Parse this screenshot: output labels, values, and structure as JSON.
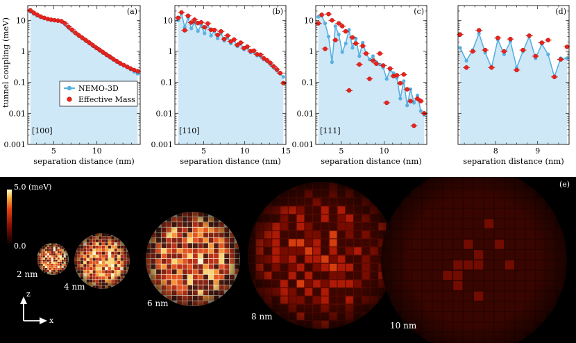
{
  "figure": {
    "ylabel": "tunnel coupling (meV)",
    "xlabel": "separation distance (nm)",
    "legend": {
      "nemo": "NEMO-3D",
      "em": "Effective Mass"
    },
    "colors": {
      "nemo_line": "#58b0e0",
      "nemo_fill": "#cfe8f7",
      "em": "#e8231b",
      "em_edge": "#b51410"
    }
  },
  "chart_data": [
    {
      "type": "line",
      "panel_label": "(a)",
      "direction": "[100]",
      "xlim": [
        2,
        15
      ],
      "ylim": [
        0.001,
        30
      ],
      "xticks": [
        5,
        10
      ],
      "xtick_labels": [
        "5",
        "10"
      ],
      "yticks": [
        0.001,
        0.01,
        0.1,
        1,
        10
      ],
      "ytick_labels": [
        "0.001",
        "0.01",
        "0.1",
        "1",
        "10"
      ],
      "nemo": {
        "x": [
          2.3,
          2.7,
          3.1,
          3.5,
          3.9,
          4.3,
          4.7,
          5.1,
          5.5,
          5.9,
          6.3,
          6.7,
          7.1,
          7.5,
          7.9,
          8.3,
          8.7,
          9.1,
          9.5,
          9.9,
          10.3,
          10.7,
          11.1,
          11.5,
          11.9,
          12.3,
          12.7,
          13.1,
          13.5,
          13.9,
          14.3,
          14.7
        ],
        "y": [
          19,
          16,
          14,
          12.5,
          11.5,
          10.8,
          10.3,
          10,
          9.6,
          9,
          7.5,
          5.8,
          4.7,
          3.8,
          3.1,
          2.6,
          2.15,
          1.8,
          1.5,
          1.25,
          1.05,
          0.88,
          0.74,
          0.63,
          0.53,
          0.45,
          0.39,
          0.34,
          0.3,
          0.26,
          0.22,
          0.19
        ]
      },
      "em": {
        "x": [
          2.3,
          2.7,
          3.1,
          3.5,
          3.9,
          4.3,
          4.7,
          5.1,
          5.5,
          5.9,
          6.3,
          6.7,
          7.1,
          7.5,
          7.9,
          8.3,
          8.7,
          9.1,
          9.5,
          9.9,
          10.3,
          10.7,
          11.1,
          11.5,
          11.9,
          12.3,
          12.7,
          13.1,
          13.5,
          13.9,
          14.3,
          14.7
        ],
        "y": [
          21,
          17.5,
          15,
          13.2,
          12,
          11.1,
          10.5,
          10.1,
          9.8,
          9.4,
          8,
          6.2,
          5,
          4,
          3.3,
          2.75,
          2.3,
          1.92,
          1.6,
          1.33,
          1.12,
          0.94,
          0.79,
          0.67,
          0.56,
          0.48,
          0.41,
          0.36,
          0.32,
          0.28,
          0.25,
          0.23
        ]
      }
    },
    {
      "type": "line",
      "panel_label": "(b)",
      "direction": "[110]",
      "xlim": [
        1.5,
        15
      ],
      "ylim": [
        0.001,
        30
      ],
      "xticks": [
        5,
        10,
        15
      ],
      "xtick_labels": [
        "5",
        "10",
        "15"
      ],
      "yticks": [
        0.001,
        0.01,
        0.1,
        1,
        10
      ],
      "ytick_labels": [
        "0.001",
        "0.01",
        "0.1",
        "1",
        "10"
      ],
      "nemo": {
        "x": [
          1.9,
          2.3,
          2.7,
          3.1,
          3.5,
          3.9,
          4.3,
          4.7,
          5.1,
          5.5,
          5.9,
          6.3,
          6.7,
          7.1,
          7.5,
          7.9,
          8.3,
          8.7,
          9.1,
          9.5,
          9.9,
          10.3,
          10.7,
          11.1,
          11.5,
          11.9,
          12.3,
          12.7,
          13.1,
          13.5,
          13.9,
          14.3,
          14.7
        ],
        "y": [
          10,
          17,
          6,
          12,
          5.5,
          8.5,
          4.5,
          7,
          3.8,
          8,
          3.2,
          4.6,
          2.6,
          4,
          2.2,
          2.9,
          1.8,
          2.3,
          1.45,
          1.8,
          1.15,
          1.3,
          0.92,
          0.95,
          0.73,
          0.7,
          0.55,
          0.48,
          0.38,
          0.3,
          0.24,
          0.19,
          0.15
        ]
      },
      "em": {
        "x": [
          1.9,
          2.3,
          2.7,
          3.1,
          3.5,
          3.9,
          4.3,
          4.7,
          5.1,
          5.5,
          5.9,
          6.3,
          6.7,
          7.1,
          7.5,
          7.9,
          8.3,
          8.7,
          9.1,
          9.5,
          9.9,
          10.3,
          10.7,
          11.1,
          11.5,
          11.9,
          12.3,
          12.7,
          13.1,
          13.5,
          13.9,
          14.3,
          14.7
        ],
        "y": [
          12,
          18,
          4.8,
          14,
          8.5,
          10.5,
          8.2,
          8.6,
          6,
          7.9,
          5,
          4.9,
          3.4,
          4.4,
          2.5,
          3.2,
          2.1,
          2.4,
          1.6,
          1.9,
          1.28,
          1.42,
          1.02,
          1.05,
          0.8,
          0.78,
          0.6,
          0.52,
          0.42,
          0.33,
          0.26,
          0.2,
          0.095
        ]
      }
    },
    {
      "type": "line",
      "panel_label": "(c)",
      "direction": "[111]",
      "xlim": [
        2,
        15
      ],
      "ylim": [
        0.001,
        30
      ],
      "xticks": [
        5,
        10
      ],
      "xtick_labels": [
        "5",
        "10"
      ],
      "yticks": [
        0.001,
        0.01,
        0.1,
        1,
        10
      ],
      "ytick_labels": [
        "0.001",
        "0.01",
        "0.1",
        "1",
        "10"
      ],
      "nemo": {
        "x": [
          2.3,
          2.7,
          3.1,
          3.5,
          3.9,
          4.3,
          4.7,
          5.1,
          5.5,
          5.9,
          6.3,
          6.7,
          7.1,
          7.5,
          7.9,
          8.3,
          8.7,
          9.1,
          9.5,
          9.9,
          10.3,
          10.7,
          11.1,
          11.5,
          11.9,
          12.3,
          12.7,
          13.1,
          13.5,
          13.9,
          14.3,
          14.7
        ],
        "y": [
          13,
          14,
          8,
          3,
          0.45,
          6.5,
          3.5,
          0.95,
          1.8,
          5,
          1.3,
          2.6,
          0.7,
          1.9,
          0.85,
          0.55,
          0.7,
          0.45,
          0.38,
          0.3,
          0.13,
          0.25,
          0.2,
          0.14,
          0.03,
          0.11,
          0.018,
          0.06,
          0.022,
          0.038,
          0.012,
          0.009
        ]
      },
      "em": {
        "x": [
          2.3,
          2.7,
          3.1,
          3.5,
          3.9,
          4.3,
          4.7,
          5.1,
          5.5,
          5.9,
          6.3,
          6.7,
          7.1,
          7.5,
          7.9,
          8.3,
          8.7,
          9.1,
          9.5,
          9.9,
          10.3,
          10.7,
          11.1,
          11.5,
          11.9,
          12.3,
          12.7,
          13.1,
          13.5,
          13.9,
          14.3,
          14.7
        ],
        "y": [
          8,
          15,
          1.2,
          16,
          10,
          2.3,
          8,
          6.5,
          4.4,
          0.055,
          2.8,
          1.8,
          0.38,
          1.5,
          0.85,
          0.13,
          0.5,
          0.4,
          0.85,
          0.35,
          0.022,
          0.28,
          0.16,
          0.17,
          0.094,
          0.18,
          0.06,
          0.025,
          0.004,
          0.03,
          0.025,
          0.01
        ]
      }
    },
    {
      "type": "line",
      "panel_label": "(d)",
      "direction": "",
      "xlim": [
        7.1,
        9.75
      ],
      "ylim": [
        0.001,
        30
      ],
      "xticks": [
        8,
        9
      ],
      "xtick_labels": [
        "8",
        "9"
      ],
      "yticks": [
        0.001,
        0.01,
        0.1,
        1,
        10
      ],
      "ytick_labels": [
        "",
        "",
        "",
        "",
        ""
      ],
      "nemo": {
        "x": [
          7.15,
          7.3,
          7.45,
          7.6,
          7.75,
          7.9,
          8.05,
          8.2,
          8.35,
          8.5,
          8.65,
          8.8,
          8.95,
          9.1,
          9.25,
          9.4,
          9.55,
          9.7
        ],
        "y": [
          1.3,
          0.5,
          1.1,
          3.8,
          0.9,
          0.3,
          2.4,
          0.8,
          2.1,
          0.3,
          1,
          3,
          0.6,
          1.7,
          0.8,
          0.15,
          0.6,
          0.6
        ]
      },
      "em": {
        "x": [
          7.15,
          7.3,
          7.45,
          7.6,
          7.75,
          7.9,
          8.05,
          8.2,
          8.35,
          8.5,
          8.65,
          8.8,
          8.95,
          9.1,
          9.25,
          9.4,
          9.55,
          9.7
        ],
        "y": [
          3.5,
          0.3,
          1,
          4.8,
          1.1,
          0.3,
          2.7,
          1,
          2.5,
          0.25,
          1.1,
          3.2,
          0.7,
          1.9,
          2.3,
          0.15,
          0.55,
          1.4
        ]
      }
    }
  ],
  "maps": {
    "colorbar_max": "5.0 (meV)",
    "colorbar_min": "0.0",
    "panel_label": "(e)",
    "axis_z": "z",
    "axis_x": "x",
    "spheres": [
      {
        "label": "2 nm",
        "intensity": 0.92
      },
      {
        "label": "4 nm",
        "intensity": 0.9
      },
      {
        "label": "6 nm",
        "intensity": 0.78
      },
      {
        "label": "8 nm",
        "intensity": 0.48
      },
      {
        "label": "10 nm",
        "intensity": 0.22
      }
    ]
  }
}
